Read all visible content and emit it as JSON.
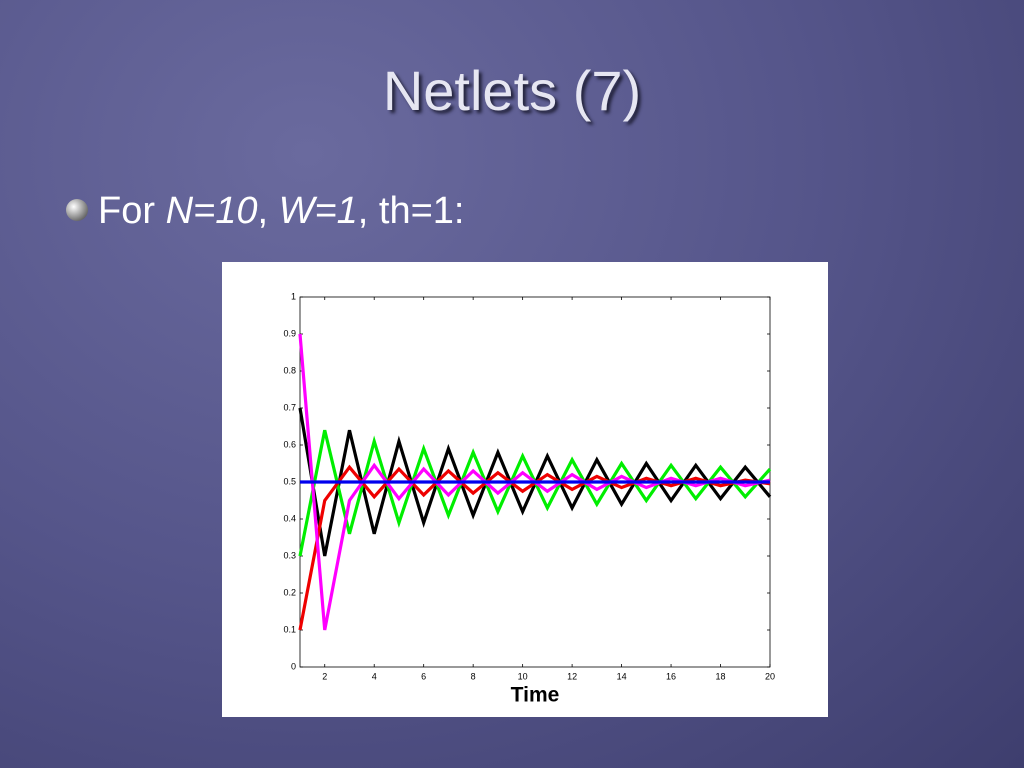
{
  "slide": {
    "title": "Netlets (7)",
    "bullet": [
      "For ",
      "N=10",
      ", ",
      "W=1",
      ", th=1:"
    ]
  },
  "chart_data": {
    "type": "line",
    "x_label": "Time",
    "x": [
      1,
      2,
      3,
      4,
      5,
      6,
      7,
      8,
      9,
      10,
      11,
      12,
      13,
      14,
      15,
      16,
      17,
      18,
      19,
      20
    ],
    "series": [
      {
        "color": "#000000",
        "values": [
          0.7,
          0.3,
          0.64,
          0.36,
          0.61,
          0.39,
          0.59,
          0.41,
          0.58,
          0.42,
          0.57,
          0.43,
          0.56,
          0.44,
          0.55,
          0.45,
          0.545,
          0.455,
          0.54,
          0.46
        ]
      },
      {
        "color": "#00ee00",
        "values": [
          0.3,
          0.64,
          0.36,
          0.61,
          0.39,
          0.59,
          0.41,
          0.58,
          0.42,
          0.57,
          0.43,
          0.56,
          0.44,
          0.55,
          0.45,
          0.545,
          0.455,
          0.54,
          0.46,
          0.535
        ]
      },
      {
        "color": "#ee0000",
        "values": [
          0.1,
          0.45,
          0.54,
          0.46,
          0.535,
          0.465,
          0.53,
          0.47,
          0.525,
          0.475,
          0.52,
          0.48,
          0.515,
          0.485,
          0.51,
          0.49,
          0.51,
          0.49,
          0.505,
          0.495
        ]
      },
      {
        "color": "#ff00ff",
        "values": [
          0.9,
          0.1,
          0.45,
          0.545,
          0.455,
          0.535,
          0.465,
          0.53,
          0.47,
          0.525,
          0.475,
          0.52,
          0.48,
          0.515,
          0.485,
          0.51,
          0.49,
          0.51,
          0.49,
          0.505
        ]
      },
      {
        "color": "#0000ee",
        "values": [
          0.5,
          0.5,
          0.5,
          0.5,
          0.5,
          0.5,
          0.5,
          0.5,
          0.5,
          0.5,
          0.5,
          0.5,
          0.5,
          0.5,
          0.5,
          0.5,
          0.5,
          0.5,
          0.5,
          0.5
        ]
      }
    ],
    "xlim": [
      1,
      20
    ],
    "xticks": [
      2,
      4,
      6,
      8,
      10,
      12,
      14,
      16,
      18,
      20
    ],
    "ylim": [
      0,
      1
    ],
    "yticks": [
      0,
      0.1,
      0.2,
      0.3,
      0.4,
      0.5,
      0.6,
      0.7,
      0.8,
      0.9,
      1
    ]
  }
}
